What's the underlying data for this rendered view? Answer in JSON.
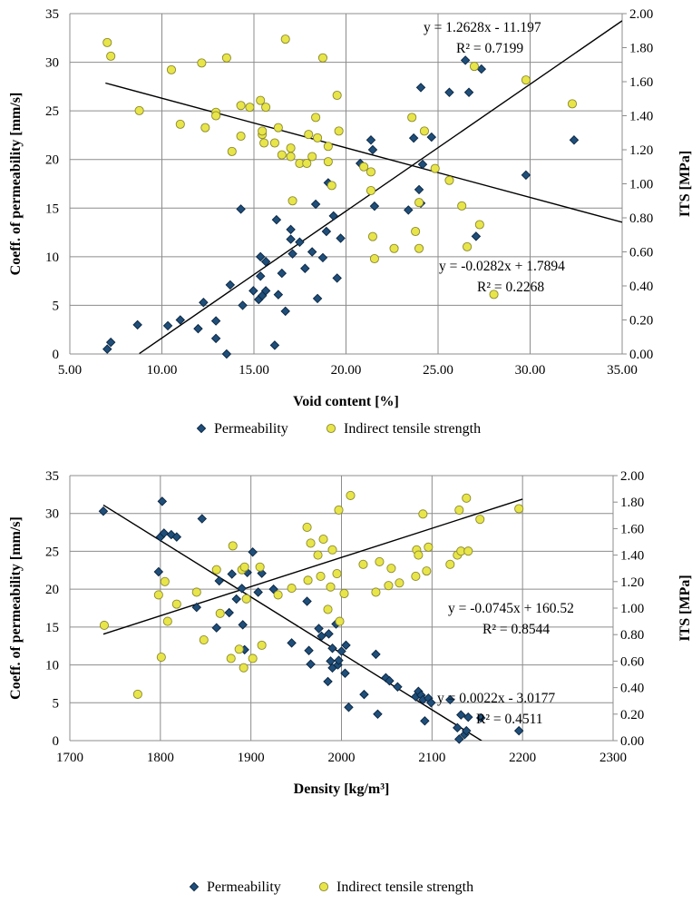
{
  "chart_data": [
    {
      "type": "scatter",
      "xlabel": "Void content [%]",
      "ylabel": "Coeff. of permeability [mm/s]",
      "y2label": "ITS [MPa]",
      "xlim": [
        5,
        36
      ],
      "ylim": [
        0,
        35
      ],
      "y2lim": [
        0,
        2
      ],
      "x_ticks": [
        "5.00",
        "10.00",
        "15.00",
        "20.00",
        "25.00",
        "30.00",
        "35.00"
      ],
      "y_ticks": [
        "0",
        "5",
        "10",
        "15",
        "20",
        "25",
        "30",
        "35"
      ],
      "y2_ticks": [
        "0.00",
        "0.20",
        "0.40",
        "0.60",
        "0.80",
        "1.00",
        "1.20",
        "1.40",
        "1.60",
        "1.80",
        "2.00"
      ],
      "grid": true,
      "legend": [
        "Permeability",
        "Indirect tensile strength"
      ],
      "legend_position": "bottom",
      "series": [
        {
          "name": "Permeability",
          "axis": "left",
          "marker": "diamond",
          "color": "#1F4E79",
          "points": [
            [
              7.1,
              0.5
            ],
            [
              7.3,
              1.2
            ],
            [
              8.8,
              3.0
            ],
            [
              10.5,
              2.9
            ],
            [
              11.2,
              3.5
            ],
            [
              12.2,
              2.6
            ],
            [
              12.5,
              5.3
            ],
            [
              13.2,
              3.4
            ],
            [
              13.2,
              1.6
            ],
            [
              13.8,
              0.0
            ],
            [
              14.0,
              7.1
            ],
            [
              14.6,
              14.9
            ],
            [
              14.7,
              5.0
            ],
            [
              15.3,
              6.5
            ],
            [
              15.6,
              5.6
            ],
            [
              15.7,
              8.0
            ],
            [
              15.7,
              10.0
            ],
            [
              15.8,
              6.0
            ],
            [
              16.0,
              6.5
            ],
            [
              16.0,
              9.5
            ],
            [
              16.5,
              0.9
            ],
            [
              16.6,
              13.8
            ],
            [
              16.7,
              6.1
            ],
            [
              16.9,
              8.3
            ],
            [
              17.1,
              4.4
            ],
            [
              17.4,
              11.8
            ],
            [
              17.4,
              12.8
            ],
            [
              17.5,
              10.3
            ],
            [
              17.9,
              11.5
            ],
            [
              18.2,
              8.8
            ],
            [
              18.6,
              10.5
            ],
            [
              18.8,
              15.4
            ],
            [
              18.9,
              5.7
            ],
            [
              19.2,
              9.9
            ],
            [
              19.4,
              12.6
            ],
            [
              19.5,
              17.6
            ],
            [
              19.8,
              14.2
            ],
            [
              20.0,
              7.8
            ],
            [
              20.2,
              11.9
            ],
            [
              21.3,
              19.6
            ],
            [
              21.9,
              22.0
            ],
            [
              22.0,
              21.0
            ],
            [
              22.1,
              15.2
            ],
            [
              24.0,
              14.8
            ],
            [
              24.3,
              22.2
            ],
            [
              24.6,
              16.9
            ],
            [
              24.7,
              27.4
            ],
            [
              24.7,
              15.5
            ],
            [
              24.8,
              19.5
            ],
            [
              25.3,
              22.3
            ],
            [
              26.3,
              26.9
            ],
            [
              27.2,
              30.2
            ],
            [
              27.4,
              26.9
            ],
            [
              27.8,
              12.1
            ],
            [
              28.1,
              29.3
            ],
            [
              30.6,
              18.4
            ],
            [
              33.3,
              22.0
            ]
          ]
        },
        {
          "name": "Indirect tensile strength",
          "axis": "right",
          "marker": "circle",
          "color": "#E8E54A",
          "points": [
            [
              7.1,
              1.83
            ],
            [
              7.3,
              1.75
            ],
            [
              8.9,
              1.43
            ],
            [
              10.7,
              1.67
            ],
            [
              11.2,
              1.35
            ],
            [
              12.4,
              1.71
            ],
            [
              12.6,
              1.33
            ],
            [
              13.2,
              1.42
            ],
            [
              13.2,
              1.4
            ],
            [
              13.8,
              1.74
            ],
            [
              14.1,
              1.19
            ],
            [
              14.6,
              1.46
            ],
            [
              14.6,
              1.28
            ],
            [
              15.1,
              1.45
            ],
            [
              15.7,
              1.49
            ],
            [
              15.8,
              1.29
            ],
            [
              15.8,
              1.31
            ],
            [
              15.9,
              1.24
            ],
            [
              16.0,
              1.45
            ],
            [
              16.5,
              1.24
            ],
            [
              16.7,
              1.33
            ],
            [
              16.9,
              1.17
            ],
            [
              17.1,
              1.85
            ],
            [
              17.4,
              1.21
            ],
            [
              17.4,
              1.16
            ],
            [
              17.5,
              0.9
            ],
            [
              17.9,
              1.12
            ],
            [
              18.3,
              1.12
            ],
            [
              18.4,
              1.29
            ],
            [
              18.6,
              1.16
            ],
            [
              18.8,
              1.39
            ],
            [
              18.9,
              1.27
            ],
            [
              19.2,
              1.74
            ],
            [
              19.5,
              1.22
            ],
            [
              19.5,
              1.13
            ],
            [
              19.7,
              0.99
            ],
            [
              20.0,
              1.52
            ],
            [
              20.1,
              1.31
            ],
            [
              21.5,
              1.1
            ],
            [
              21.9,
              1.07
            ],
            [
              21.9,
              0.96
            ],
            [
              22.0,
              0.69
            ],
            [
              22.1,
              0.56
            ],
            [
              23.2,
              0.62
            ],
            [
              24.2,
              1.39
            ],
            [
              24.4,
              0.72
            ],
            [
              24.6,
              0.89
            ],
            [
              24.6,
              0.62
            ],
            [
              24.9,
              1.31
            ],
            [
              25.5,
              1.09
            ],
            [
              26.3,
              1.02
            ],
            [
              27.0,
              0.87
            ],
            [
              27.3,
              0.63
            ],
            [
              27.7,
              1.69
            ],
            [
              28.0,
              0.76
            ],
            [
              28.8,
              0.35
            ],
            [
              30.6,
              1.61
            ],
            [
              33.2,
              1.47
            ]
          ]
        }
      ],
      "trendlines": [
        {
          "series": "Permeability",
          "slope": 1.2628,
          "intercept": -11.197,
          "x_range": [
            8.9,
            36
          ],
          "equation": "y = 1.2628x - 11.197",
          "r2": "R² = 0.7199"
        },
        {
          "series": "Indirect tensile strength",
          "slope": -0.0282,
          "intercept": 1.7894,
          "x_range": [
            7,
            36
          ],
          "equation": "y = -0.0282x + 1.7894",
          "r2": "R² = 0.2268"
        }
      ]
    },
    {
      "type": "scatter",
      "xlabel": "Density [kg/m³]",
      "ylabel": "Coeff. of permeability [mm/s]",
      "y2label": "ITS [MPa]",
      "xlim": [
        1700,
        2300
      ],
      "ylim": [
        0,
        35
      ],
      "y2lim": [
        0,
        2
      ],
      "x_ticks": [
        "1700",
        "1800",
        "1900",
        "2000",
        "2100",
        "2200",
        "2300"
      ],
      "y_ticks": [
        "0",
        "5",
        "10",
        "15",
        "20",
        "25",
        "30",
        "35"
      ],
      "y2_ticks": [
        "0.00",
        "0.20",
        "0.40",
        "0.60",
        "0.80",
        "1.00",
        "1.20",
        "1.40",
        "1.60",
        "1.80",
        "2.00"
      ],
      "grid": true,
      "legend": [
        "Permeability",
        "Indirect tensile strength"
      ],
      "legend_position": "bottom",
      "series": [
        {
          "name": "Permeability",
          "axis": "left",
          "marker": "diamond",
          "color": "#1F4E79",
          "points": [
            [
              1737,
              30.3
            ],
            [
              1798,
              22.3
            ],
            [
              1800,
              26.9
            ],
            [
              1802,
              31.6
            ],
            [
              1804,
              27.4
            ],
            [
              1812,
              27.2
            ],
            [
              1818,
              26.9
            ],
            [
              1840,
              17.6
            ],
            [
              1846,
              29.3
            ],
            [
              1862,
              14.9
            ],
            [
              1865,
              21.1
            ],
            [
              1876,
              16.9
            ],
            [
              1879,
              22.0
            ],
            [
              1884,
              18.7
            ],
            [
              1890,
              20.1
            ],
            [
              1891,
              15.3
            ],
            [
              1893,
              12.0
            ],
            [
              1896,
              22.2
            ],
            [
              1902,
              24.9
            ],
            [
              1908,
              19.6
            ],
            [
              1912,
              22.1
            ],
            [
              1925,
              20.0
            ],
            [
              1945,
              12.9
            ],
            [
              1962,
              18.4
            ],
            [
              1964,
              11.9
            ],
            [
              1966,
              10.1
            ],
            [
              1975,
              14.8
            ],
            [
              1978,
              13.8
            ],
            [
              1985,
              7.8
            ],
            [
              1986,
              14.1
            ],
            [
              1988,
              10.5
            ],
            [
              1990,
              9.6
            ],
            [
              1990,
              12.2
            ],
            [
              1994,
              15.4
            ],
            [
              1996,
              10.0
            ],
            [
              1997,
              10.6
            ],
            [
              2000,
              11.8
            ],
            [
              2004,
              8.9
            ],
            [
              2005,
              12.6
            ],
            [
              2008,
              4.4
            ],
            [
              2025,
              6.1
            ],
            [
              2038,
              11.4
            ],
            [
              2040,
              3.5
            ],
            [
              2049,
              8.3
            ],
            [
              2053,
              7.9
            ],
            [
              2062,
              7.1
            ],
            [
              2082,
              5.8
            ],
            [
              2085,
              6.5
            ],
            [
              2088,
              6.0
            ],
            [
              2090,
              5.4
            ],
            [
              2092,
              2.6
            ],
            [
              2096,
              5.6
            ],
            [
              2099,
              5.0
            ],
            [
              2120,
              5.4
            ],
            [
              2128,
              1.7
            ],
            [
              2130,
              0.2
            ],
            [
              2132,
              3.4
            ],
            [
              2136,
              0.8
            ],
            [
              2138,
              1.3
            ],
            [
              2140,
              3.1
            ],
            [
              2154,
              3.0
            ],
            [
              2196,
              1.3
            ]
          ]
        },
        {
          "name": "Indirect tensile strength",
          "axis": "right",
          "marker": "circle",
          "color": "#E8E54A",
          "points": [
            [
              1738,
              0.87
            ],
            [
              1775,
              0.35
            ],
            [
              1798,
              1.1
            ],
            [
              1801,
              0.63
            ],
            [
              1805,
              1.2
            ],
            [
              1808,
              0.9
            ],
            [
              1818,
              1.03
            ],
            [
              1840,
              1.12
            ],
            [
              1848,
              0.76
            ],
            [
              1862,
              1.29
            ],
            [
              1866,
              0.96
            ],
            [
              1878,
              0.62
            ],
            [
              1880,
              1.47
            ],
            [
              1887,
              0.69
            ],
            [
              1890,
              1.29
            ],
            [
              1892,
              0.55
            ],
            [
              1893,
              1.31
            ],
            [
              1895,
              1.07
            ],
            [
              1902,
              0.62
            ],
            [
              1910,
              1.31
            ],
            [
              1912,
              0.72
            ],
            [
              1930,
              1.1
            ],
            [
              1945,
              1.15
            ],
            [
              1962,
              1.61
            ],
            [
              1963,
              1.21
            ],
            [
              1966,
              1.49
            ],
            [
              1974,
              1.4
            ],
            [
              1977,
              1.24
            ],
            [
              1980,
              1.52
            ],
            [
              1985,
              0.99
            ],
            [
              1988,
              1.16
            ],
            [
              1990,
              1.44
            ],
            [
              1995,
              1.26
            ],
            [
              1997,
              1.74
            ],
            [
              1998,
              0.9
            ],
            [
              2003,
              1.11
            ],
            [
              2010,
              1.85
            ],
            [
              2024,
              1.33
            ],
            [
              2038,
              1.12
            ],
            [
              2042,
              1.35
            ],
            [
              2052,
              1.17
            ],
            [
              2055,
              1.3
            ],
            [
              2064,
              1.19
            ],
            [
              2082,
              1.24
            ],
            [
              2083,
              1.44
            ],
            [
              2085,
              1.4
            ],
            [
              2090,
              1.71
            ],
            [
              2094,
              1.28
            ],
            [
              2096,
              1.46
            ],
            [
              2120,
              1.33
            ],
            [
              2128,
              1.4
            ],
            [
              2130,
              1.74
            ],
            [
              2132,
              1.43
            ],
            [
              2138,
              1.83
            ],
            [
              2140,
              1.43
            ],
            [
              2153,
              1.67
            ],
            [
              2196,
              1.75
            ]
          ]
        }
      ],
      "trendlines": [
        {
          "series": "Permeability",
          "slope": -0.0745,
          "intercept": 160.52,
          "x_range": [
            1737,
            2155
          ],
          "equation": "y = -0.0745x + 160.52",
          "r2": "R² = 0.8544"
        },
        {
          "series": "Indirect tensile strength",
          "slope": 0.0022,
          "intercept": -3.0177,
          "x_range": [
            1737,
            2200
          ],
          "equation": "y = 0.0022x - 3.0177",
          "r2": "R² = 0.4511"
        }
      ]
    }
  ]
}
